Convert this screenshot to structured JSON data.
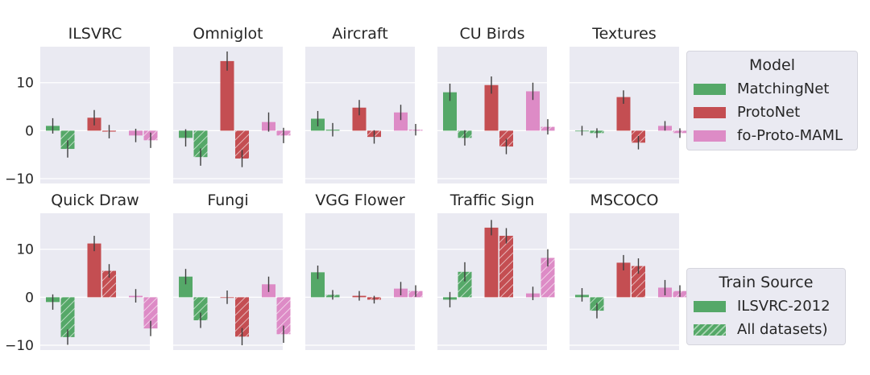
{
  "chart_data": {
    "type": "bar",
    "ylim": [
      -11,
      17.5
    ],
    "yticks": [
      -10,
      0,
      10
    ],
    "ytick_labels": [
      "−10",
      "0",
      "10"
    ],
    "grid": true,
    "subplots": [
      {
        "title": "ILSVRC",
        "groups": [
          {
            "model": "MatchingNet",
            "source": "ILSVRC-2012",
            "value": 1.0,
            "err": 1.6
          },
          {
            "model": "MatchingNet",
            "source": "All datasets)",
            "value": -3.8,
            "err": 1.8
          },
          {
            "model": "ProtoNet",
            "source": "ILSVRC-2012",
            "value": 2.7,
            "err": 1.6
          },
          {
            "model": "ProtoNet",
            "source": "All datasets)",
            "value": -0.2,
            "err": 1.4
          },
          {
            "model": "fo-Proto-MAML",
            "source": "ILSVRC-2012",
            "value": -1.0,
            "err": 1.4
          },
          {
            "model": "fo-Proto-MAML",
            "source": "All datasets)",
            "value": -2.0,
            "err": 1.6
          }
        ]
      },
      {
        "title": "Omniglot",
        "groups": [
          {
            "model": "MatchingNet",
            "source": "ILSVRC-2012",
            "value": -1.5,
            "err": 1.8
          },
          {
            "model": "MatchingNet",
            "source": "All datasets)",
            "value": -5.5,
            "err": 1.8
          },
          {
            "model": "ProtoNet",
            "source": "ILSVRC-2012",
            "value": 14.5,
            "err": 2.0
          },
          {
            "model": "ProtoNet",
            "source": "All datasets)",
            "value": -5.8,
            "err": 1.8
          },
          {
            "model": "fo-Proto-MAML",
            "source": "ILSVRC-2012",
            "value": 1.8,
            "err": 2.0
          },
          {
            "model": "fo-Proto-MAML",
            "source": "All datasets)",
            "value": -1.0,
            "err": 1.6
          }
        ]
      },
      {
        "title": "Aircraft",
        "groups": [
          {
            "model": "MatchingNet",
            "source": "ILSVRC-2012",
            "value": 2.5,
            "err": 1.6
          },
          {
            "model": "MatchingNet",
            "source": "All datasets)",
            "value": 0.2,
            "err": 1.4
          },
          {
            "model": "ProtoNet",
            "source": "ILSVRC-2012",
            "value": 4.8,
            "err": 1.6
          },
          {
            "model": "ProtoNet",
            "source": "All datasets)",
            "value": -1.3,
            "err": 1.4
          },
          {
            "model": "fo-Proto-MAML",
            "source": "ILSVRC-2012",
            "value": 3.8,
            "err": 1.6
          },
          {
            "model": "fo-Proto-MAML",
            "source": "All datasets)",
            "value": 0.2,
            "err": 1.2
          }
        ]
      },
      {
        "title": "CU Birds",
        "groups": [
          {
            "model": "MatchingNet",
            "source": "ILSVRC-2012",
            "value": 8.0,
            "err": 1.8
          },
          {
            "model": "MatchingNet",
            "source": "All datasets)",
            "value": -1.5,
            "err": 1.6
          },
          {
            "model": "ProtoNet",
            "source": "ILSVRC-2012",
            "value": 9.5,
            "err": 1.8
          },
          {
            "model": "ProtoNet",
            "source": "All datasets)",
            "value": -3.3,
            "err": 1.6
          },
          {
            "model": "fo-Proto-MAML",
            "source": "ILSVRC-2012",
            "value": 8.2,
            "err": 1.8
          },
          {
            "model": "fo-Proto-MAML",
            "source": "All datasets)",
            "value": 0.8,
            "err": 1.6
          }
        ]
      },
      {
        "title": "Textures",
        "groups": [
          {
            "model": "MatchingNet",
            "source": "ILSVRC-2012",
            "value": 0.0,
            "err": 1.0
          },
          {
            "model": "MatchingNet",
            "source": "All datasets)",
            "value": -0.5,
            "err": 1.0
          },
          {
            "model": "ProtoNet",
            "source": "ILSVRC-2012",
            "value": 7.0,
            "err": 1.4
          },
          {
            "model": "ProtoNet",
            "source": "All datasets)",
            "value": -2.5,
            "err": 1.4
          },
          {
            "model": "fo-Proto-MAML",
            "source": "ILSVRC-2012",
            "value": 1.0,
            "err": 1.0
          },
          {
            "model": "fo-Proto-MAML",
            "source": "All datasets)",
            "value": -0.5,
            "err": 1.0
          }
        ]
      },
      {
        "title": "Quick Draw",
        "groups": [
          {
            "model": "MatchingNet",
            "source": "ILSVRC-2012",
            "value": -1.0,
            "err": 1.6
          },
          {
            "model": "MatchingNet",
            "source": "All datasets)",
            "value": -8.3,
            "err": 1.6
          },
          {
            "model": "ProtoNet",
            "source": "ILSVRC-2012",
            "value": 11.2,
            "err": 1.6
          },
          {
            "model": "ProtoNet",
            "source": "All datasets)",
            "value": 5.5,
            "err": 1.4
          },
          {
            "model": "fo-Proto-MAML",
            "source": "ILSVRC-2012",
            "value": 0.3,
            "err": 1.4
          },
          {
            "model": "fo-Proto-MAML",
            "source": "All datasets)",
            "value": -6.5,
            "err": 1.6
          }
        ]
      },
      {
        "title": "Fungi",
        "groups": [
          {
            "model": "MatchingNet",
            "source": "ILSVRC-2012",
            "value": 4.3,
            "err": 1.6
          },
          {
            "model": "MatchingNet",
            "source": "All datasets)",
            "value": -4.8,
            "err": 1.6
          },
          {
            "model": "ProtoNet",
            "source": "ILSVRC-2012",
            "value": 0.0,
            "err": 1.4
          },
          {
            "model": "ProtoNet",
            "source": "All datasets)",
            "value": -8.2,
            "err": 1.8
          },
          {
            "model": "fo-Proto-MAML",
            "source": "ILSVRC-2012",
            "value": 2.7,
            "err": 1.6
          },
          {
            "model": "fo-Proto-MAML",
            "source": "All datasets)",
            "value": -7.7,
            "err": 1.8
          }
        ]
      },
      {
        "title": "VGG Flower",
        "groups": [
          {
            "model": "MatchingNet",
            "source": "ILSVRC-2012",
            "value": 5.2,
            "err": 1.4
          },
          {
            "model": "MatchingNet",
            "source": "All datasets)",
            "value": 0.5,
            "err": 1.0
          },
          {
            "model": "ProtoNet",
            "source": "ILSVRC-2012",
            "value": 0.3,
            "err": 1.0
          },
          {
            "model": "ProtoNet",
            "source": "All datasets)",
            "value": -0.5,
            "err": 0.8
          },
          {
            "model": "fo-Proto-MAML",
            "source": "ILSVRC-2012",
            "value": 1.8,
            "err": 1.4
          },
          {
            "model": "fo-Proto-MAML",
            "source": "All datasets)",
            "value": 1.3,
            "err": 1.2
          }
        ]
      },
      {
        "title": "Traffic Sign",
        "groups": [
          {
            "model": "MatchingNet",
            "source": "ILSVRC-2012",
            "value": -0.5,
            "err": 1.6
          },
          {
            "model": "MatchingNet",
            "source": "All datasets)",
            "value": 5.3,
            "err": 2.0
          },
          {
            "model": "ProtoNet",
            "source": "ILSVRC-2012",
            "value": 14.5,
            "err": 1.6
          },
          {
            "model": "ProtoNet",
            "source": "All datasets)",
            "value": 12.8,
            "err": 1.6
          },
          {
            "model": "fo-Proto-MAML",
            "source": "ILSVRC-2012",
            "value": 0.8,
            "err": 1.4
          },
          {
            "model": "fo-Proto-MAML",
            "source": "All datasets)",
            "value": 8.2,
            "err": 1.8
          }
        ]
      },
      {
        "title": "MSCOCO",
        "groups": [
          {
            "model": "MatchingNet",
            "source": "ILSVRC-2012",
            "value": 0.5,
            "err": 1.4
          },
          {
            "model": "MatchingNet",
            "source": "All datasets)",
            "value": -2.8,
            "err": 1.6
          },
          {
            "model": "ProtoNet",
            "source": "ILSVRC-2012",
            "value": 7.2,
            "err": 1.6
          },
          {
            "model": "ProtoNet",
            "source": "All datasets)",
            "value": 6.5,
            "err": 1.6
          },
          {
            "model": "fo-Proto-MAML",
            "source": "ILSVRC-2012",
            "value": 2.0,
            "err": 1.6
          },
          {
            "model": "fo-Proto-MAML",
            "source": "All datasets)",
            "value": 1.3,
            "err": 1.2
          }
        ]
      }
    ]
  },
  "legend_model": {
    "title": "Model",
    "items": [
      {
        "label": "MatchingNet",
        "color": "#55a868"
      },
      {
        "label": "ProtoNet",
        "color": "#c44e52"
      },
      {
        "label": "fo-Proto-MAML",
        "color": "#dd8bc6"
      }
    ]
  },
  "legend_source": {
    "title": "Train Source",
    "items": [
      {
        "label": "ILSVRC-2012",
        "pattern": "solid"
      },
      {
        "label": "All datasets)",
        "pattern": "hatched"
      }
    ]
  },
  "colors": {
    "MatchingNet": "#55a868",
    "ProtoNet": "#c44e52",
    "fo-Proto-MAML": "#dd8bc6",
    "panel_bg": "#eaeaf2",
    "grid": "#ffffff",
    "errorbar": "#3f3f3f"
  }
}
